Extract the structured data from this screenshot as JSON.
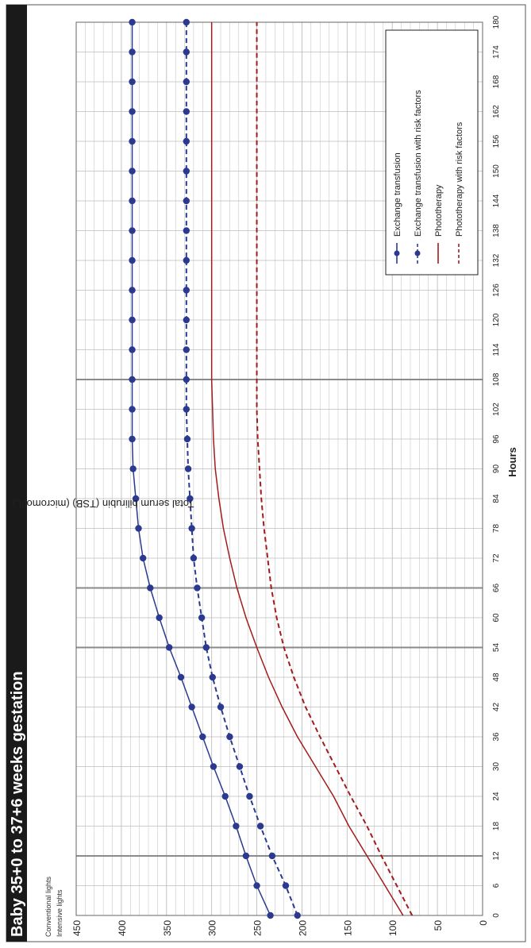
{
  "title": "Baby 35+0 to 37+6 weeks gestation",
  "side_labels": {
    "conventional": "Conventional lights",
    "intensive": "Intensive lights"
  },
  "colors": {
    "exchange": "#2b3a8f",
    "phototherapy": "#a31b1b",
    "grid": "#bdbdbd",
    "title_band": "#1a1a1a"
  },
  "chart_data": {
    "type": "line",
    "title": "Baby 35+0 to 37+6 weeks gestation",
    "xlabel": "Hours",
    "ylabel": "Total serum bilirubin (TSB) (micromol/L)",
    "xlim": [
      0,
      180
    ],
    "ylim": [
      0,
      450
    ],
    "x_ticks": [
      0,
      6,
      12,
      18,
      24,
      30,
      36,
      42,
      48,
      54,
      60,
      66,
      72,
      78,
      84,
      90,
      96,
      102,
      108,
      114,
      120,
      126,
      132,
      138,
      144,
      150,
      156,
      162,
      168,
      174,
      180
    ],
    "y_ticks": [
      0,
      50,
      100,
      150,
      200,
      250,
      300,
      350,
      400,
      450
    ],
    "grid": true,
    "orientation": "rotated 90° counter-clockwise",
    "legend_position": "top-right",
    "series": [
      {
        "name": "Exchange transfusion",
        "style": "solid-markers",
        "x": [
          0,
          6,
          12,
          18,
          24,
          30,
          36,
          42,
          48,
          54,
          60,
          66,
          72,
          78,
          84,
          90,
          96,
          102,
          108,
          114,
          120,
          126,
          132,
          138,
          144,
          150,
          156,
          162,
          168,
          174,
          180
        ],
        "y": [
          235,
          250,
          262,
          273,
          285,
          298,
          310,
          322,
          334,
          347,
          358,
          368,
          376,
          381,
          384,
          387,
          388,
          388,
          388,
          388,
          388,
          388,
          388,
          388,
          388,
          388,
          388,
          388,
          388,
          388,
          388
        ]
      },
      {
        "name": "Exchange transfusion with risk factors",
        "style": "dashed-markers",
        "x": [
          0,
          6,
          12,
          18,
          24,
          30,
          36,
          42,
          48,
          54,
          60,
          66,
          72,
          78,
          84,
          90,
          96,
          102,
          108,
          114,
          120,
          126,
          132,
          138,
          144,
          150,
          156,
          162,
          168,
          174,
          180
        ],
        "y": [
          205,
          218,
          233,
          246,
          258,
          269,
          280,
          290,
          299,
          306,
          311,
          316,
          320,
          322,
          324,
          326,
          327,
          328,
          328,
          328,
          328,
          328,
          328,
          328,
          328,
          328,
          328,
          328,
          328,
          328,
          328
        ]
      },
      {
        "name": "Phototherapy",
        "style": "solid",
        "x": [
          0,
          6,
          12,
          18,
          24,
          30,
          36,
          42,
          48,
          54,
          60,
          66,
          72,
          78,
          84,
          90,
          96,
          102,
          108,
          114,
          120,
          126,
          132,
          138,
          144,
          150,
          156,
          162,
          168,
          174,
          180
        ],
        "y": [
          88,
          108,
          128,
          148,
          165,
          185,
          205,
          222,
          237,
          250,
          262,
          272,
          280,
          287,
          292,
          296,
          298,
          299,
          300,
          300,
          300,
          300,
          300,
          300,
          300,
          300,
          300,
          300,
          300,
          300,
          300
        ]
      },
      {
        "name": "Phototherapy with risk factors",
        "style": "dashed",
        "x": [
          0,
          6,
          12,
          18,
          24,
          30,
          36,
          42,
          48,
          54,
          60,
          66,
          72,
          78,
          84,
          90,
          96,
          102,
          108,
          114,
          120,
          126,
          132,
          138,
          144,
          150,
          156,
          162,
          168,
          174,
          180
        ],
        "y": [
          78,
          95,
          112,
          128,
          146,
          163,
          180,
          196,
          209,
          220,
          228,
          234,
          238,
          242,
          245,
          247,
          249,
          250,
          250,
          250,
          250,
          250,
          250,
          250,
          250,
          250,
          250,
          250,
          250,
          250,
          250
        ]
      }
    ]
  }
}
